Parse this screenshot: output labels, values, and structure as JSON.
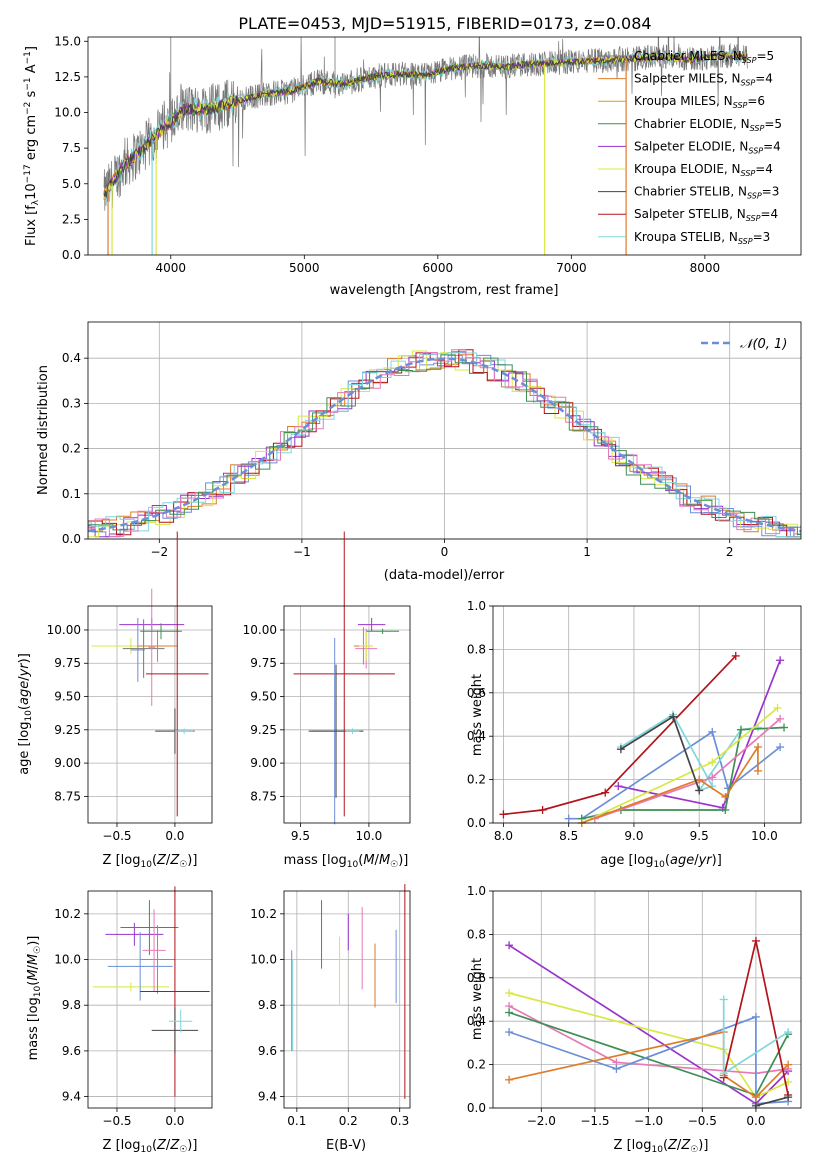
{
  "chart_data": [
    {
      "type": "line",
      "title": "PLATE=0453, MJD=51915, FIBERID=0173, z=0.084",
      "xlabel": "wavelength [Angstrom, rest frame]",
      "ylabel": "Flux [f_λ10^-17 erg cm^-2 s^-1 A^-1]",
      "xlim": [
        3380,
        8720
      ],
      "ylim": [
        0,
        15.3
      ],
      "xticks": [
        "4000",
        "5000",
        "6000",
        "7000",
        "8000"
      ],
      "yticks": [
        "0.0",
        "2.5",
        "5.0",
        "7.5",
        "10.0",
        "12.5",
        "15.0"
      ],
      "legend": "top-right",
      "series": [
        {
          "name": "Chabrier MILES, N_SSP=5",
          "color": "#777777"
        },
        {
          "name": "Salpeter MILES, N_SSP=4",
          "color": "#e07b28"
        },
        {
          "name": "Kroupa MILES, N_SSP=6",
          "color": "#d4a017"
        },
        {
          "name": "Chabrier ELODIE, N_SSP=5",
          "color": "#3f8f55"
        },
        {
          "name": "Salpeter ELODIE, N_SSP=4",
          "color": "#9933cc"
        },
        {
          "name": "Kroupa ELODIE, N_SSP=4",
          "color": "#d8e843"
        },
        {
          "name": "Chabrier STELIB, N_SSP=3",
          "color": "#444444"
        },
        {
          "name": "Salpeter STELIB, N_SSP=4",
          "color": "#b3141b"
        },
        {
          "name": "Kroupa STELIB, N_SSP=3",
          "color": "#7fd6dc"
        }
      ],
      "continuum": [
        [
          3500,
          4.2
        ],
        [
          3650,
          6.3
        ],
        [
          3800,
          7.5
        ],
        [
          3950,
          9.0
        ],
        [
          4100,
          10.2
        ],
        [
          4300,
          10.3
        ],
        [
          4500,
          10.8
        ],
        [
          4700,
          11.3
        ],
        [
          4900,
          11.5
        ],
        [
          5100,
          12.2
        ],
        [
          5300,
          12.0
        ],
        [
          5500,
          12.5
        ],
        [
          5700,
          12.7
        ],
        [
          5900,
          12.6
        ],
        [
          6100,
          13.1
        ],
        [
          6300,
          13.3
        ],
        [
          6500,
          13.2
        ],
        [
          6700,
          13.4
        ],
        [
          6900,
          13.5
        ],
        [
          7100,
          13.6
        ],
        [
          7300,
          13.7
        ],
        [
          7500,
          13.8
        ],
        [
          7700,
          13.9
        ],
        [
          7900,
          13.7
        ],
        [
          8100,
          14.0
        ],
        [
          8300,
          13.9
        ]
      ]
    },
    {
      "type": "line",
      "xlabel": "(data-model)/error",
      "ylabel": "Normed distribution",
      "xlim": [
        -2.5,
        2.5
      ],
      "ylim": [
        0,
        0.48
      ],
      "xticks": [
        "−2",
        "−1",
        "0",
        "1",
        "2"
      ],
      "yticks": [
        "0.0",
        "0.1",
        "0.2",
        "0.3",
        "0.4"
      ],
      "legend": "top-right",
      "legend_label": "𝒩(0, 1)",
      "hist_colors": [
        "#e07b28",
        "#6a8fd8",
        "#9933cc",
        "#d8e843",
        "#b3141b",
        "#7fd6dc",
        "#e67ab8",
        "#3f8f55"
      ]
    },
    {
      "type": "scatter",
      "xlabel": "Z [log10(Z/Z☉)]",
      "ylabel": "age  [log10(age/yr)]",
      "xlim": [
        -0.75,
        0.32
      ],
      "ylim": [
        8.55,
        10.18
      ],
      "xticks": [
        "−0.5",
        "0.0"
      ],
      "yticks": [
        "8.75",
        "9.00",
        "9.25",
        "9.50",
        "9.75",
        "10.00"
      ],
      "points": [
        {
          "x": -0.2,
          "y": 10.04,
          "xerr": 0.28,
          "yerr": 0.05,
          "color": "#9933cc"
        },
        {
          "x": -0.38,
          "y": 9.88,
          "xerr": 0.34,
          "yerr": 0.06,
          "color": "#d8e843"
        },
        {
          "x": -0.32,
          "y": 9.85,
          "xerr": 0.06,
          "yerr": 0.24,
          "color": "#6a8fd8"
        },
        {
          "x": -0.27,
          "y": 9.86,
          "xerr": 0.18,
          "yerr": 0.22,
          "color": "#777777"
        },
        {
          "x": -0.15,
          "y": 9.88,
          "xerr": 0.17,
          "yerr": 0.12,
          "color": "#e07b28"
        },
        {
          "x": -0.2,
          "y": 9.87,
          "xerr": 0.03,
          "yerr": 0.44,
          "color": "#e67ab8"
        },
        {
          "x": -0.12,
          "y": 9.99,
          "xerr": 0.18,
          "yerr": 0.06,
          "color": "#3f8f55"
        },
        {
          "x": 0.02,
          "y": 9.67,
          "xerr": 0.27,
          "yerr": 1.07,
          "color": "#b3141b"
        },
        {
          "x": 0.0,
          "y": 9.24,
          "xerr": 0.17,
          "yerr": 0.17,
          "color": "#444444"
        },
        {
          "x": 0.08,
          "y": 9.24,
          "xerr": 0.08,
          "yerr": 0.02,
          "color": "#7fd6dc"
        }
      ]
    },
    {
      "type": "scatter",
      "xlabel": "mass [log10(M/M☉)]",
      "ylabel": "",
      "xlim": [
        9.38,
        10.3
      ],
      "ylim": [
        8.55,
        10.18
      ],
      "xticks": [
        "9.5",
        "10.0"
      ],
      "yticks": [
        "8.75",
        "9.00",
        "9.25",
        "9.50",
        "9.75",
        "10.00"
      ],
      "points": [
        {
          "x": 9.82,
          "y": 9.67,
          "xerr": 0.37,
          "yerr": 1.07,
          "color": "#b3141b"
        },
        {
          "x": 9.75,
          "y": 9.24,
          "xerr": 0.17,
          "yerr": 0.7,
          "color": "#6a8fd8"
        },
        {
          "x": 9.76,
          "y": 9.24,
          "xerr": 0.2,
          "yerr": 0.5,
          "color": "#444444"
        },
        {
          "x": 9.88,
          "y": 9.24,
          "xerr": 0.05,
          "yerr": 0.02,
          "color": "#7fd6dc"
        },
        {
          "x": 9.98,
          "y": 9.86,
          "xerr": 0.08,
          "yerr": 0.15,
          "color": "#e67ab8"
        },
        {
          "x": 9.96,
          "y": 9.88,
          "xerr": 0.07,
          "yerr": 0.14,
          "color": "#e07b28"
        },
        {
          "x": 10.02,
          "y": 10.04,
          "xerr": 0.1,
          "yerr": 0.05,
          "color": "#9933cc"
        },
        {
          "x": 10.1,
          "y": 9.99,
          "xerr": 0.12,
          "yerr": 0.02,
          "color": "#3f8f55"
        },
        {
          "x": 9.98,
          "y": 9.88,
          "xerr": 0.05,
          "yerr": 0.11,
          "color": "#d8e843"
        }
      ]
    },
    {
      "type": "line",
      "xlabel": "age  [log10(age/yr)]",
      "ylabel": "mass weight",
      "xlim": [
        7.92,
        10.28
      ],
      "ylim": [
        0,
        1.0
      ],
      "xticks": [
        "8.0",
        "8.5",
        "9.0",
        "9.5",
        "10.0"
      ],
      "yticks": [
        "0.0",
        "0.2",
        "0.4",
        "0.6",
        "0.8",
        "1.0"
      ],
      "series": [
        {
          "color": "#b3141b",
          "points": [
            [
              8.0,
              0.04
            ],
            [
              8.3,
              0.06
            ],
            [
              8.78,
              0.14
            ],
            [
              9.78,
              0.77
            ]
          ]
        },
        {
          "color": "#9933cc",
          "points": [
            [
              8.88,
              0.17
            ],
            [
              9.68,
              0.07
            ],
            [
              10.12,
              0.75
            ]
          ]
        },
        {
          "color": "#6a8fd8",
          "points": [
            [
              8.5,
              0.02
            ],
            [
              8.6,
              0.02
            ],
            [
              9.6,
              0.42
            ],
            [
              9.72,
              0.16
            ],
            [
              10.12,
              0.35
            ]
          ]
        },
        {
          "color": "#7fd6dc",
          "points": [
            [
              8.9,
              0.35
            ],
            [
              9.3,
              0.5
            ],
            [
              9.6,
              0.17
            ],
            [
              9.5,
              0.15
            ],
            [
              9.82,
              0.43
            ],
            [
              9.95,
              0.44
            ]
          ]
        },
        {
          "color": "#3f8f55",
          "points": [
            [
              8.6,
              0.02
            ],
            [
              8.9,
              0.06
            ],
            [
              9.7,
              0.06
            ],
            [
              9.82,
              0.43
            ],
            [
              10.15,
              0.44
            ]
          ]
        },
        {
          "color": "#d8e843",
          "points": [
            [
              8.6,
              0.0
            ],
            [
              9.6,
              0.28
            ],
            [
              10.1,
              0.53
            ]
          ]
        },
        {
          "color": "#e67ab8",
          "points": [
            [
              8.7,
              0.02
            ],
            [
              9.6,
              0.21
            ],
            [
              10.12,
              0.48
            ]
          ]
        },
        {
          "color": "#e07b28",
          "points": [
            [
              8.6,
              0.0
            ],
            [
              9.5,
              0.2
            ],
            [
              9.7,
              0.12
            ],
            [
              9.95,
              0.35
            ],
            [
              9.95,
              0.24
            ]
          ]
        },
        {
          "color": "#444444",
          "points": [
            [
              8.9,
              0.34
            ],
            [
              9.3,
              0.49
            ],
            [
              9.5,
              0.15
            ]
          ]
        }
      ]
    },
    {
      "type": "scatter",
      "xlabel": "Z [log10(Z/Z☉)]",
      "ylabel": "mass [log10(M/M☉)]",
      "xlim": [
        -0.75,
        0.32
      ],
      "ylim": [
        9.35,
        10.3
      ],
      "xticks": [
        "−0.5",
        "0.0"
      ],
      "yticks": [
        "9.4",
        "9.6",
        "9.8",
        "10.0",
        "10.2"
      ],
      "points": [
        {
          "x": -0.38,
          "y": 9.88,
          "xerr": 0.33,
          "yerr": 0.02,
          "color": "#d8e843"
        },
        {
          "x": -0.35,
          "y": 10.11,
          "xerr": 0.25,
          "yerr": 0.05,
          "color": "#9933cc"
        },
        {
          "x": -0.3,
          "y": 9.97,
          "xerr": 0.28,
          "yerr": 0.15,
          "color": "#6a8fd8"
        },
        {
          "x": -0.22,
          "y": 10.14,
          "xerr": 0.25,
          "yerr": 0.12,
          "color": "#3f8f55"
        },
        {
          "x": -0.15,
          "y": 10.0,
          "xerr": 0.15,
          "yerr": 0.15,
          "color": "#e07b28"
        },
        {
          "x": -0.18,
          "y": 10.04,
          "xerr": 0.1,
          "yerr": 0.18,
          "color": "#e67ab8"
        },
        {
          "x": 0.0,
          "y": 9.86,
          "xerr": 0.3,
          "yerr": 0.46,
          "color": "#b3141b"
        },
        {
          "x": 0.0,
          "y": 9.69,
          "xerr": 0.2,
          "yerr": 0.1,
          "color": "#444444"
        },
        {
          "x": 0.05,
          "y": 9.73,
          "xerr": 0.1,
          "yerr": 0.05,
          "color": "#7fd6dc"
        }
      ]
    },
    {
      "type": "scatter",
      "xlabel": "E(B-V)",
      "ylabel": "",
      "xlim": [
        0.075,
        0.32
      ],
      "ylim": [
        9.35,
        10.3
      ],
      "xticks": [
        "0.1",
        "0.2",
        "0.3"
      ],
      "yticks": [
        "9.4",
        "9.6",
        "9.8",
        "10.0",
        "10.2"
      ],
      "points": [
        {
          "x": 0.09,
          "y": 9.82,
          "yerr": 0.22,
          "color": "#6a8fd8"
        },
        {
          "x": 0.092,
          "y": 9.8,
          "yerr": 0.2,
          "color": "#7fd6dc"
        },
        {
          "x": 0.148,
          "y": 10.11,
          "yerr": 0.15,
          "color": "#3f8f55"
        },
        {
          "x": 0.183,
          "y": 9.95,
          "yerr": 0.15,
          "color": "#d8e843"
        },
        {
          "x": 0.2,
          "y": 10.12,
          "yerr": 0.08,
          "color": "#9933cc"
        },
        {
          "x": 0.227,
          "y": 10.05,
          "yerr": 0.18,
          "color": "#e67ab8"
        },
        {
          "x": 0.252,
          "y": 9.93,
          "yerr": 0.14,
          "color": "#e07b28"
        },
        {
          "x": 0.293,
          "y": 9.97,
          "yerr": 0.16,
          "color": "#6a8fd8"
        },
        {
          "x": 0.31,
          "y": 9.86,
          "yerr": 0.47,
          "color": "#b3141b"
        }
      ]
    },
    {
      "type": "line",
      "xlabel": "Z [log10(Z/Z☉)]",
      "ylabel": "mass weight",
      "xlim": [
        -2.45,
        0.42
      ],
      "ylim": [
        0,
        1.0
      ],
      "xticks": [
        "−2.0",
        "−1.5",
        "−1.0",
        "−0.5",
        "0.0"
      ],
      "yticks": [
        "0.0",
        "0.2",
        "0.4",
        "0.6",
        "0.8",
        "1.0"
      ],
      "series": [
        {
          "color": "#9933cc",
          "points": [
            [
              -2.3,
              0.75
            ],
            [
              0.0,
              0.02
            ],
            [
              0.3,
              0.17
            ]
          ]
        },
        {
          "color": "#d8e843",
          "points": [
            [
              -2.3,
              0.53
            ],
            [
              -0.3,
              0.27
            ],
            [
              0.0,
              0.05
            ],
            [
              0.3,
              0.12
            ]
          ]
        },
        {
          "color": "#e67ab8",
          "points": [
            [
              -2.3,
              0.47
            ],
            [
              -1.3,
              0.21
            ],
            [
              0.0,
              0.16
            ],
            [
              0.3,
              0.18
            ]
          ]
        },
        {
          "color": "#3f8f55",
          "points": [
            [
              -2.3,
              0.44
            ],
            [
              0.0,
              0.06
            ],
            [
              0.3,
              0.34
            ]
          ]
        },
        {
          "color": "#6a8fd8",
          "points": [
            [
              -2.3,
              0.35
            ],
            [
              -1.3,
              0.18
            ],
            [
              0.0,
              0.42
            ],
            [
              0.0,
              0.02
            ],
            [
              0.3,
              0.03
            ]
          ]
        },
        {
          "color": "#e07b28",
          "points": [
            [
              -2.3,
              0.13
            ],
            [
              -0.3,
              0.35
            ],
            [
              -0.3,
              0.15
            ],
            [
              0.0,
              0.05
            ],
            [
              0.3,
              0.2
            ]
          ]
        },
        {
          "color": "#b3141b",
          "points": [
            [
              -0.3,
              0.14
            ],
            [
              0.0,
              0.77
            ],
            [
              0.3,
              0.06
            ]
          ]
        },
        {
          "color": "#7fd6dc",
          "points": [
            [
              -0.3,
              0.5
            ],
            [
              -0.3,
              0.16
            ],
            [
              0.3,
              0.35
            ]
          ]
        },
        {
          "color": "#444444",
          "points": [
            [
              0.0,
              0.01
            ],
            [
              0.3,
              0.05
            ]
          ]
        }
      ]
    }
  ]
}
